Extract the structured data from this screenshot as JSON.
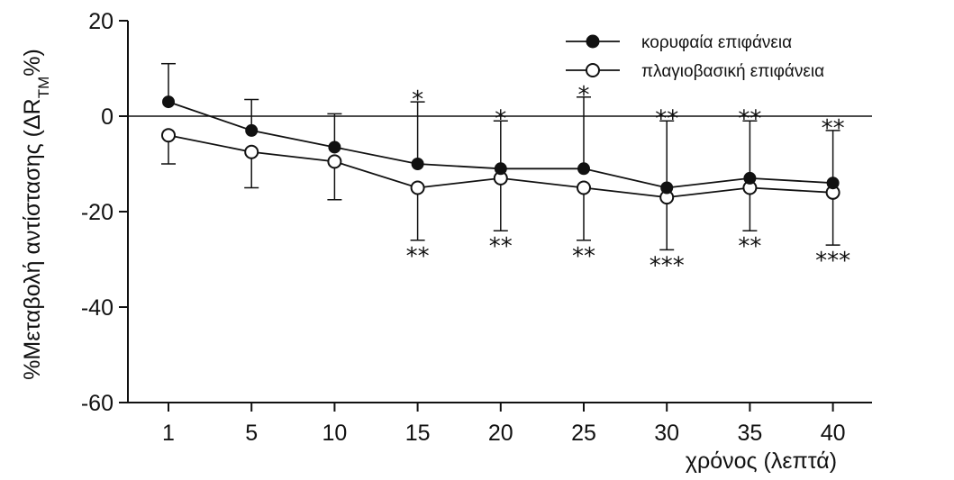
{
  "chart_data": {
    "type": "line",
    "xlabel": "χρόνος (λεπτά)",
    "ylabel_prefix": "%Μεταβολή αντίστασης (ΔR",
    "ylabel_subscript": "TM",
    "ylabel_suffix": "%)",
    "categories": [
      "1",
      "5",
      "10",
      "15",
      "20",
      "25",
      "30",
      "35",
      "40"
    ],
    "ylim": [
      -60,
      20
    ],
    "yticks": [
      "20",
      "0",
      "-20",
      "-40",
      "-60"
    ],
    "zero_line": true,
    "grid": false,
    "legend_position": "top-right",
    "series": [
      {
        "name": "κορυφαία επιφάνεια",
        "marker": "filled-circle",
        "values": [
          3,
          -3,
          -6.5,
          -10,
          -11,
          -11,
          -15,
          -13,
          -14
        ],
        "error_up": [
          8,
          6.5,
          7,
          13,
          10,
          15,
          14,
          12,
          11
        ],
        "significance": [
          "",
          "",
          "",
          "*",
          "*",
          "*",
          "**",
          "**",
          "**"
        ]
      },
      {
        "name": "πλαγιοβασική επιφάνεια",
        "marker": "open-circle",
        "values": [
          -4,
          -7.5,
          -9.5,
          -15,
          -13,
          -15,
          -17,
          -15,
          -16
        ],
        "error_down": [
          6,
          7.5,
          8,
          11,
          11,
          11,
          11,
          9,
          11
        ],
        "significance": [
          "",
          "",
          "",
          "**",
          "**",
          "**",
          "***",
          "**",
          "***"
        ]
      }
    ]
  }
}
